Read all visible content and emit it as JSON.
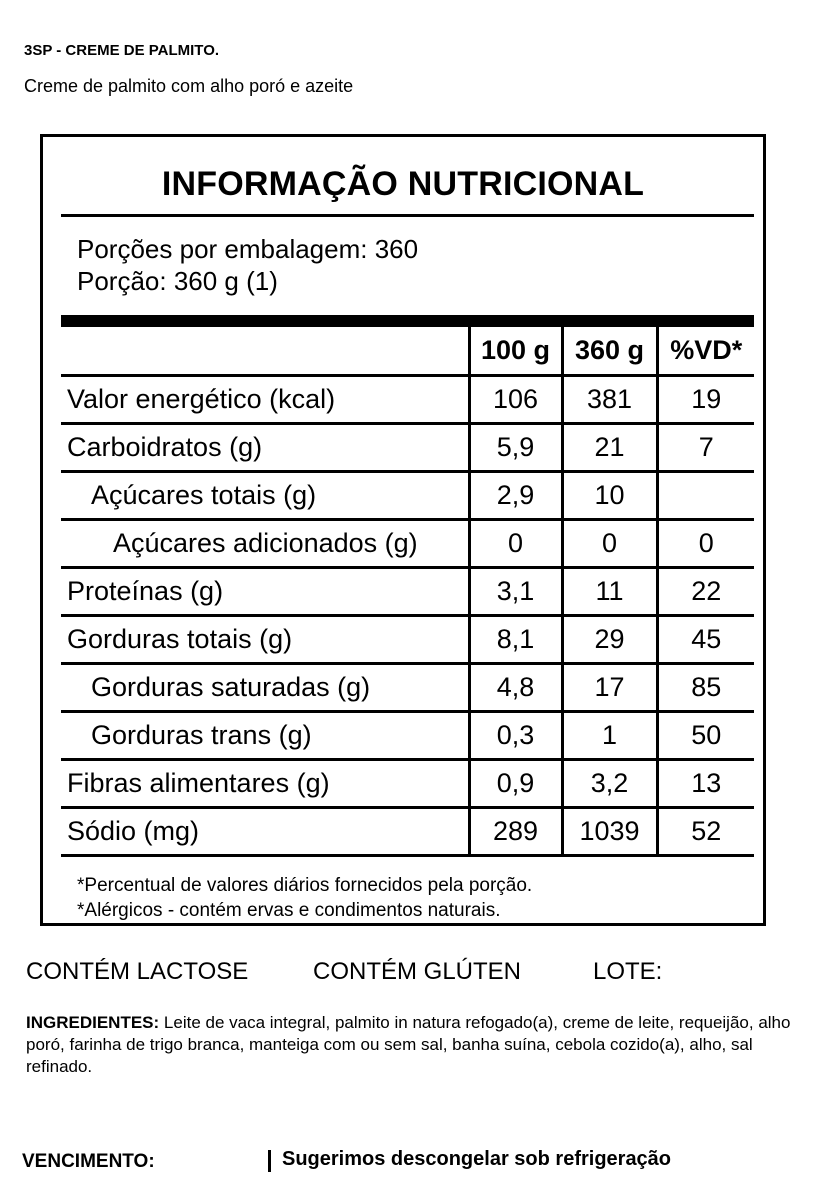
{
  "product": {
    "code_name": "3SP - CREME DE PALMITO.",
    "description": "Creme de palmito com alho poró e azeite"
  },
  "nutrition": {
    "title": "INFORMAÇÃO NUTRICIONAL",
    "servings_per_package": "Porções por embalagem: 360",
    "serving_size": "Porção: 360 g (1)",
    "headers": [
      "100 g",
      "360 g",
      "%VD*"
    ],
    "rows": [
      {
        "label": "Valor energético (kcal)",
        "indent": 0,
        "per100": "106",
        "perServing": "381",
        "dv": "19"
      },
      {
        "label": "Carboidratos (g)",
        "indent": 0,
        "per100": "5,9",
        "perServing": "21",
        "dv": "7"
      },
      {
        "label": "Açúcares totais (g)",
        "indent": 1,
        "per100": "2,9",
        "perServing": "10",
        "dv": ""
      },
      {
        "label": "Açúcares adicionados (g)",
        "indent": 2,
        "per100": "0",
        "perServing": "0",
        "dv": "0"
      },
      {
        "label": "Proteínas (g)",
        "indent": 0,
        "per100": "3,1",
        "perServing": "11",
        "dv": "22"
      },
      {
        "label": "Gorduras totais (g)",
        "indent": 0,
        "per100": "8,1",
        "perServing": "29",
        "dv": "45"
      },
      {
        "label": "Gorduras saturadas (g)",
        "indent": 1,
        "per100": "4,8",
        "perServing": "17",
        "dv": "85"
      },
      {
        "label": "Gorduras trans (g)",
        "indent": 1,
        "per100": "0,3",
        "perServing": "1",
        "dv": "50"
      },
      {
        "label": "Fibras alimentares (g)",
        "indent": 0,
        "per100": "0,9",
        "perServing": "3,2",
        "dv": "13"
      },
      {
        "label": "Sódio (mg)",
        "indent": 0,
        "per100": "289",
        "perServing": "1039",
        "dv": "52"
      }
    ],
    "footnote_dv": "*Percentual de valores diários fornecidos pela porção.",
    "footnote_allergens": "*Alérgicos - contém ervas e condimentos naturais."
  },
  "allergens": {
    "lactose": "CONTÉM LACTOSE",
    "gluten": "CONTÉM GLÚTEN",
    "lot": "LOTE:"
  },
  "ingredients": {
    "label": "INGREDIENTES:",
    "text": " Leite de vaca integral, palmito in natura refogado(a), creme de leite, requeijão, alho poró, farinha de trigo branca, manteiga com ou sem sal, banha suína, cebola cozido(a), alho, sal refinado."
  },
  "footer": {
    "expiry_label": "VENCIMENTO:",
    "thaw_note": "Sugerimos descongelar sob refrigeração"
  }
}
